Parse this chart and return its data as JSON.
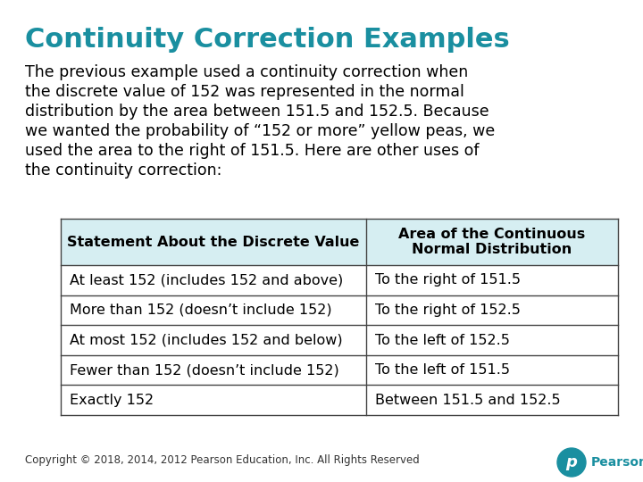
{
  "title": "Continuity Correction Examples",
  "title_color": "#1a8fa0",
  "body_lines": [
    "The previous example used a continuity correction when",
    "the discrete value of 152 was represented in the normal",
    "distribution by the area between 151.5 and 152.5. Because",
    "we wanted the probability of “152 or more” yellow peas, we",
    "used the area to the right of 151.5. Here are other uses of",
    "the continuity correction:"
  ],
  "table_headers": [
    "Statement About the Discrete Value",
    "Area of the Continuous\nNormal Distribution"
  ],
  "table_rows": [
    [
      "At least 152 (includes 152 and above)",
      "To the right of 151.5"
    ],
    [
      "More than 152 (doesn’t include 152)",
      "To the right of 152.5"
    ],
    [
      "At most 152 (includes 152 and below)",
      "To the left of 152.5"
    ],
    [
      "Fewer than 152 (doesn’t include 152)",
      "To the left of 151.5"
    ],
    [
      "Exactly 152",
      "Between 151.5 and 152.5"
    ]
  ],
  "row_shading": [
    "#ffffff",
    "#ffffff",
    "#ffffff",
    "#ffffff",
    "#ffffff"
  ],
  "header_bg": "#d6eef2",
  "copyright": "Copyright © 2018, 2014, 2012 Pearson Education, Inc. All Rights Reserved",
  "bg_color": "#ffffff",
  "text_color": "#000000",
  "table_border_color": "#444444",
  "title_fontsize": 22,
  "body_fontsize": 12.5,
  "table_header_fontsize": 11.5,
  "table_body_fontsize": 11.5
}
